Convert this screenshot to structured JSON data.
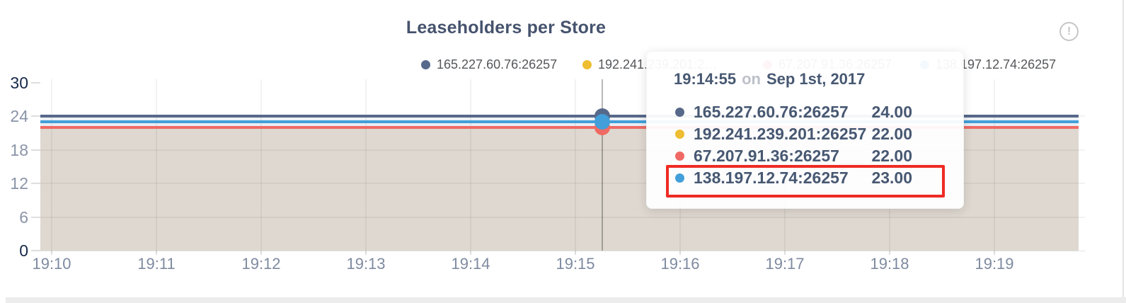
{
  "header": {
    "title": "Leaseholders per Store",
    "info_glyph": "!"
  },
  "colors": {
    "title_text": "#46536e",
    "axis_label_strong": "#16284a",
    "axis_label_muted": "#8a94a8",
    "x_axis_label": "#7e8aa0",
    "legend_text": "#55575a",
    "fill_area": "#ded8d0",
    "strip_24_23": "#eff2f6",
    "strip_23_22": "#e9eef4",
    "tooltip_text": "#475872",
    "tooltip_on_text": "#bcc1c9",
    "highlight_red": "#ee2b24"
  },
  "chart_data": {
    "type": "line",
    "title": "Leaseholders per Store",
    "x": [
      "19:10",
      "19:11",
      "19:12",
      "19:13",
      "19:14",
      "19:15",
      "19:16",
      "19:17",
      "19:18",
      "19:19"
    ],
    "y_ticks": [
      30,
      24,
      18,
      12,
      6,
      0
    ],
    "ylim": [
      0,
      30
    ],
    "grid": true,
    "legend_position": "top",
    "area_fill": true,
    "series": [
      {
        "name": "165.227.60.76:26257",
        "color": "#57698a",
        "values": [
          24,
          24,
          24,
          24,
          24,
          24,
          24,
          24,
          24,
          24
        ]
      },
      {
        "name": "192.241.239.201:26257",
        "color": "#eebd31",
        "values": [
          22,
          22,
          22,
          22,
          22,
          22,
          22,
          22,
          22,
          22
        ]
      },
      {
        "name": "67.207.91.36:26257",
        "color": "#ef6a64",
        "values": [
          22,
          22,
          22,
          22,
          22,
          22,
          22,
          22,
          22,
          22
        ]
      },
      {
        "name": "138.197.12.74:26257",
        "color": "#429fd9",
        "values": [
          23,
          23,
          23,
          23,
          23,
          23,
          23,
          23,
          23,
          23
        ]
      }
    ]
  },
  "legend": {
    "items": [
      {
        "label": "165.227.60.76:26257",
        "color": "#57698a",
        "truncated": false
      },
      {
        "label": "192.241.239.201:26257",
        "color": "#eebd31",
        "truncated": true
      },
      {
        "label": "67.207.91.36:26257",
        "color": "#ef6a64",
        "truncated": false
      },
      {
        "label": "138.197.12.74:26257",
        "color": "#429fd9",
        "truncated": false
      }
    ]
  },
  "tooltip": {
    "time": "19:14:55",
    "on_word": "on",
    "date": "Sep 1st, 2017",
    "rows": [
      {
        "name": "165.227.60.76:26257",
        "value": "24.00",
        "color": "#57698a",
        "highlighted": false
      },
      {
        "name": "192.241.239.201:26257",
        "value": "22.00",
        "color": "#eebd31",
        "highlighted": false
      },
      {
        "name": "67.207.91.36:26257",
        "value": "22.00",
        "color": "#ef6a64",
        "highlighted": false
      },
      {
        "name": "138.197.12.74:26257",
        "value": "23.00",
        "color": "#429fd9",
        "highlighted": true
      }
    ]
  }
}
